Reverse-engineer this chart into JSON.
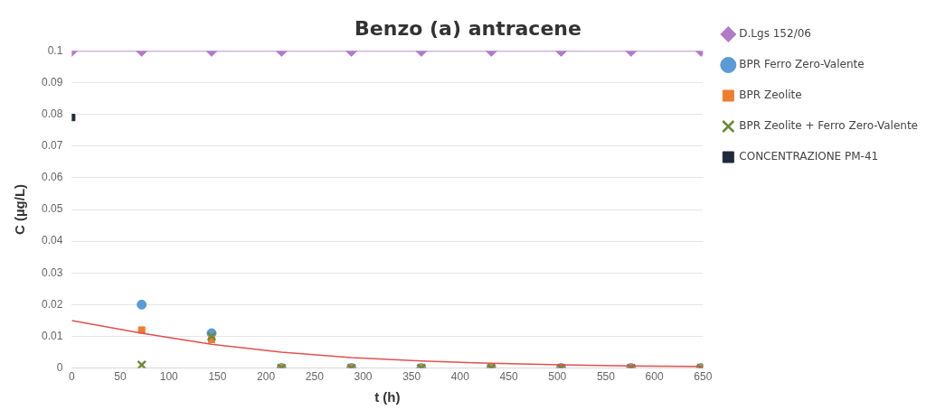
{
  "chart_data": {
    "type": "scatter",
    "title": "Benzo (a) antracene",
    "xlabel": "t (h)",
    "ylabel": "C (µg/L)",
    "x": [
      0,
      72,
      144,
      216,
      288,
      360,
      432,
      504,
      576,
      648
    ],
    "series": [
      {
        "name": "D.Lgs 152/06",
        "type": "line",
        "color": "#b07cc6",
        "marker": "diamond",
        "values": [
          0.1,
          0.1,
          0.1,
          0.1,
          0.1,
          0.1,
          0.1,
          0.1,
          0.1,
          0.1
        ]
      },
      {
        "name": "BPR Ferro Zero-Valente",
        "color": "#5b9bd5",
        "marker": "circle",
        "values": [
          null,
          0.02,
          0.011,
          0,
          0,
          0,
          0,
          0,
          0,
          0
        ]
      },
      {
        "name": "BPR Zeolite",
        "color": "#ed7d31",
        "marker": "square",
        "values": [
          null,
          0.012,
          0.009,
          0,
          0,
          0,
          0,
          0,
          0,
          0
        ]
      },
      {
        "name": "BPR Zeolite + Ferro Zero-Valente",
        "color": "#6b8a3c",
        "marker": "cross",
        "values": [
          null,
          0.001,
          0.01,
          0,
          0,
          0,
          0,
          0,
          0,
          0
        ]
      },
      {
        "name": "CONCENTRAZIONE PM-41",
        "color": "#1f2a3c",
        "marker": "square",
        "values": [
          0.079,
          null,
          null,
          null,
          null,
          null,
          null,
          null,
          null,
          null
        ]
      },
      {
        "type": "line",
        "color": "#e05050",
        "marker": "none",
        "x": [
          0,
          72,
          144,
          216,
          288,
          360,
          432,
          504,
          576,
          648
        ],
        "values": [
          0.015,
          0.011,
          0.0075,
          0.005,
          0.0033,
          0.0022,
          0.0015,
          0.001,
          0.0007,
          0.0005
        ]
      }
    ],
    "xlim": [
      0,
      650
    ],
    "xticks": [
      0,
      50,
      100,
      150,
      200,
      250,
      300,
      350,
      400,
      450,
      500,
      550,
      600,
      650
    ],
    "ylim": [
      0,
      0.1
    ],
    "yticks": [
      0,
      0.01,
      0.02,
      0.03,
      0.04,
      0.05,
      0.06,
      0.07,
      0.08,
      0.09,
      0.1
    ],
    "grid": "y",
    "legend": "right"
  }
}
